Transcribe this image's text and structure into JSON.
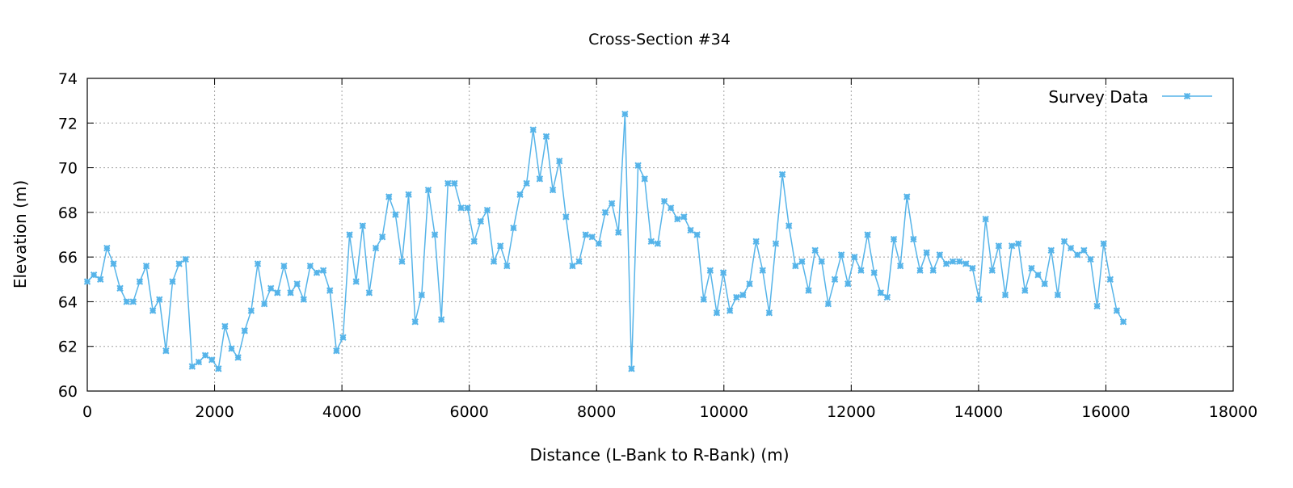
{
  "chart_data": {
    "type": "line",
    "title": "Cross-Section #34",
    "xlabel": "Distance (L-Bank to R-Bank) (m)",
    "ylabel": "Elevation (m)",
    "xlim": [
      0,
      18000
    ],
    "ylim": [
      60,
      74
    ],
    "xticks": [
      0,
      2000,
      4000,
      6000,
      8000,
      10000,
      12000,
      14000,
      16000,
      18000
    ],
    "yticks": [
      60,
      62,
      64,
      66,
      68,
      70,
      72,
      74
    ],
    "grid": true,
    "legend_position": "top-right",
    "series": [
      {
        "name": "Survey Data",
        "color": "#56b4e9",
        "marker": "asterisk-box",
        "x_start": 0,
        "x_step": 103,
        "values": [
          64.9,
          65.2,
          65.0,
          66.4,
          65.7,
          64.6,
          64.0,
          64.0,
          64.9,
          65.6,
          63.6,
          64.1,
          61.8,
          64.9,
          65.7,
          65.9,
          61.1,
          61.3,
          61.6,
          61.4,
          61.0,
          62.9,
          61.9,
          61.5,
          62.7,
          63.6,
          65.7,
          63.9,
          64.6,
          64.4,
          65.6,
          64.4,
          64.8,
          64.1,
          65.6,
          65.3,
          65.4,
          64.5,
          61.8,
          62.4,
          67.0,
          64.9,
          67.4,
          64.4,
          66.4,
          66.9,
          68.7,
          67.9,
          65.8,
          68.8,
          63.1,
          64.3,
          69.0,
          67.0,
          63.2,
          69.3,
          69.3,
          68.2,
          68.2,
          66.7,
          67.6,
          68.1,
          65.8,
          66.5,
          65.6,
          67.3,
          68.8,
          69.3,
          71.7,
          69.5,
          71.4,
          69.0,
          70.3,
          67.8,
          65.6,
          65.8,
          67.0,
          66.9,
          66.6,
          68.0,
          68.4,
          67.1,
          72.4,
          61.0,
          70.1,
          69.5,
          66.7,
          66.6,
          68.5,
          68.2,
          67.7,
          67.8,
          67.2,
          67.0,
          64.1,
          65.4,
          63.5,
          65.3,
          63.6,
          64.2,
          64.3,
          64.8,
          66.7,
          65.4,
          63.5,
          66.6,
          69.7,
          67.4,
          65.6,
          65.8,
          64.5,
          66.3,
          65.8,
          63.9,
          65.0,
          66.1,
          64.8,
          66.0,
          65.4,
          67.0,
          65.3,
          64.4,
          64.2,
          66.8,
          65.6,
          68.7,
          66.8,
          65.4,
          66.2,
          65.4,
          66.1,
          65.7,
          65.8,
          65.8,
          65.7,
          65.5,
          64.1,
          67.7,
          65.4,
          66.5,
          64.3,
          66.5,
          66.6,
          64.5,
          65.5,
          65.2,
          64.8,
          66.3,
          64.3,
          66.7,
          66.4,
          66.1,
          66.3,
          65.9,
          63.8,
          66.6,
          65.0,
          63.6,
          63.1
        ]
      }
    ]
  }
}
